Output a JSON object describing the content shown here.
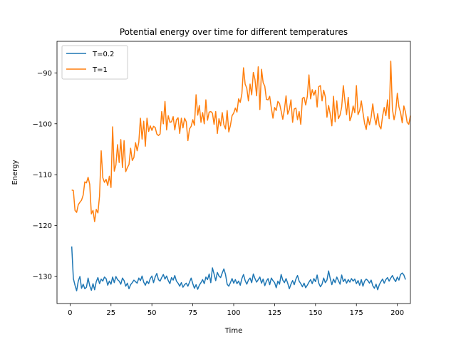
{
  "chart_data": {
    "type": "line",
    "title": "Potential energy over time for different temperatures",
    "xlabel": "Time",
    "ylabel": "Energy",
    "xlim": [
      -8,
      208
    ],
    "ylim": [
      -135.3,
      -83.8
    ],
    "xticks": [
      0,
      25,
      50,
      75,
      100,
      125,
      150,
      175,
      200
    ],
    "yticks": [
      -130,
      -120,
      -110,
      -100,
      -90
    ],
    "grid": false,
    "legend_position": "top-left",
    "series": [
      {
        "name": "T=0.2",
        "color": "#1f77b4",
        "x_start": 1,
        "x_step": 1,
        "values": [
          -124.1,
          -130.4,
          -131.7,
          -132.8,
          -130.9,
          -130.0,
          -132.3,
          -131.5,
          -132.4,
          -132.1,
          -130.3,
          -131.8,
          -132.7,
          -131.4,
          -132.6,
          -131.0,
          -130.2,
          -131.4,
          -130.5,
          -130.9,
          -130.1,
          -130.4,
          -131.7,
          -130.9,
          -131.5,
          -130.1,
          -131.2,
          -130.0,
          -130.6,
          -130.9,
          -131.5,
          -130.3,
          -130.8,
          -131.9,
          -131.3,
          -132.4,
          -131.6,
          -131.2,
          -130.7,
          -131.0,
          -131.3,
          -130.3,
          -130.8,
          -129.9,
          -131.1,
          -131.7,
          -130.9,
          -131.4,
          -130.4,
          -129.9,
          -131.2,
          -130.1,
          -129.4,
          -130.6,
          -130.9,
          -130.2,
          -129.6,
          -130.5,
          -129.9,
          -130.8,
          -131.4,
          -130.2,
          -130.7,
          -129.8,
          -130.9,
          -131.3,
          -131.9,
          -131.2,
          -132.1,
          -131.6,
          -131.3,
          -131.9,
          -131.1,
          -130.3,
          -131.4,
          -132.3,
          -131.6,
          -132.5,
          -131.7,
          -131.2,
          -130.6,
          -131.4,
          -130.1,
          -130.6,
          -129.5,
          -131.2,
          -128.3,
          -129.5,
          -130.8,
          -129.2,
          -129.9,
          -130.2,
          -129.3,
          -128.5,
          -129.6,
          -131.5,
          -131.9,
          -131.2,
          -130.4,
          -131.3,
          -130.6,
          -131.4,
          -130.9,
          -131.7,
          -130.4,
          -129.6,
          -130.8,
          -131.5,
          -130.7,
          -130.3,
          -131.2,
          -129.5,
          -130.4,
          -131.1,
          -130.6,
          -130.1,
          -131.3,
          -130.5,
          -131.8,
          -130.9,
          -130.4,
          -131.6,
          -130.3,
          -130.8,
          -131.2,
          -132.2,
          -130.9,
          -131.5,
          -129.6,
          -130.7,
          -131.2,
          -130.4,
          -131.3,
          -132.4,
          -131.5,
          -130.8,
          -131.6,
          -130.5,
          -129.8,
          -130.9,
          -131.4,
          -132.0,
          -131.3,
          -132.2,
          -131.7,
          -131.1,
          -130.6,
          -131.4,
          -130.4,
          -131.0,
          -129.7,
          -131.3,
          -132.0,
          -131.5,
          -130.3,
          -131.2,
          -130.7,
          -128.9,
          -130.4,
          -131.6,
          -130.5,
          -131.2,
          -130.1,
          -130.8,
          -131.5,
          -129.7,
          -131.0,
          -130.5,
          -131.3,
          -130.6,
          -131.1,
          -130.4,
          -130.9,
          -130.5,
          -131.4,
          -130.8,
          -131.7,
          -130.6,
          -131.9,
          -130.9,
          -130.5,
          -130.8,
          -131.3,
          -130.7,
          -131.8,
          -132.3,
          -131.5,
          -132.6,
          -131.6,
          -131.0,
          -130.5,
          -131.3,
          -130.6,
          -130.2,
          -130.9,
          -130.3,
          -129.8,
          -130.5,
          -131.0,
          -130.1,
          -130.7,
          -129.6,
          -129.3,
          -129.7,
          -130.6
        ]
      },
      {
        "name": "T=1",
        "color": "#ff7f0e",
        "x_start": 1,
        "x_step": 1,
        "values": [
          -113.0,
          -113.1,
          -117.0,
          -117.4,
          -115.9,
          -115.4,
          -115.0,
          -114.0,
          -111.4,
          -111.6,
          -110.5,
          -111.9,
          -117.7,
          -117.0,
          -119.2,
          -116.8,
          -117.5,
          -114.2,
          -105.3,
          -110.6,
          -111.5,
          -110.9,
          -112.1,
          -110.3,
          -112.5,
          -100.6,
          -109.3,
          -108.1,
          -104.1,
          -107.6,
          -103.1,
          -108.6,
          -103.3,
          -109.4,
          -108.6,
          -108.0,
          -104.8,
          -107.2,
          -106.6,
          -103.7,
          -105.3,
          -103.6,
          -98.9,
          -103.0,
          -99.5,
          -104.4,
          -98.9,
          -101.5,
          -100.4,
          -101.3,
          -100.5,
          -100.7,
          -102.0,
          -102.3,
          -102.0,
          -97.6,
          -100.0,
          -95.6,
          -101.2,
          -98.4,
          -99.7,
          -99.6,
          -98.6,
          -101.2,
          -99.2,
          -98.8,
          -101.9,
          -98.9,
          -100.8,
          -98.9,
          -99.6,
          -103.3,
          -101.0,
          -100.5,
          -99.2,
          -100.3,
          -94.3,
          -98.3,
          -96.4,
          -99.7,
          -97.8,
          -100.0,
          -95.3,
          -99.3,
          -97.7,
          -97.6,
          -97.9,
          -100.1,
          -97.6,
          -101.9,
          -99.0,
          -100.4,
          -97.8,
          -100.2,
          -101.0,
          -97.4,
          -101.6,
          -100.3,
          -98.4,
          -97.9,
          -96.9,
          -97.7,
          -95.1,
          -95.8,
          -94.1,
          -89.0,
          -92.2,
          -93.0,
          -95.5,
          -92.2,
          -94.3,
          -89.9,
          -91.3,
          -94.5,
          -88.8,
          -97.2,
          -89.3,
          -91.9,
          -92.6,
          -95.2,
          -95.3,
          -94.6,
          -96.9,
          -98.9,
          -96.8,
          -97.4,
          -95.6,
          -96.0,
          -97.5,
          -99.1,
          -97.2,
          -94.5,
          -98.1,
          -97.2,
          -95.3,
          -99.7,
          -97.1,
          -96.9,
          -99.2,
          -97.6,
          -100.1,
          -95.0,
          -94.8,
          -96.3,
          -94.6,
          -90.4,
          -95.1,
          -93.3,
          -94.4,
          -93.4,
          -96.7,
          -92.7,
          -92.5,
          -95.5,
          -93.4,
          -94.7,
          -98.7,
          -96.4,
          -98.1,
          -100.4,
          -94.6,
          -99.6,
          -95.5,
          -99.0,
          -98.3,
          -96.7,
          -92.5,
          -95.6,
          -98.2,
          -94.8,
          -99.4,
          -98.5,
          -96.5,
          -97.8,
          -92.5,
          -98.2,
          -97.4,
          -95.5,
          -97.8,
          -99.9,
          -101.1,
          -98.6,
          -100.2,
          -98.7,
          -96.1,
          -98.7,
          -100.2,
          -98.0,
          -100.4,
          -101.0,
          -98.5,
          -96.8,
          -98.4,
          -95.3,
          -99.0,
          -87.7,
          -97.1,
          -99.2,
          -97.7,
          -94.0,
          -96.7,
          -97.8,
          -99.8,
          -96.5,
          -97.7,
          -99.7,
          -100.1,
          -98.4
        ]
      }
    ]
  }
}
